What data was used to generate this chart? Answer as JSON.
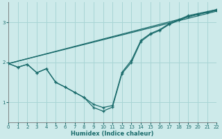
{
  "xlabel": "Humidex (Indice chaleur)",
  "bg_color": "#cdeaea",
  "grid_color": "#a8d5d5",
  "line_color": "#1a6b6b",
  "xlim": [
    0,
    22
  ],
  "ylim": [
    0.5,
    3.5
  ],
  "yticks": [
    1,
    2,
    3
  ],
  "xticks": [
    0,
    1,
    2,
    3,
    4,
    5,
    6,
    7,
    8,
    9,
    10,
    11,
    12,
    13,
    14,
    15,
    16,
    17,
    18,
    19,
    20,
    21,
    22
  ],
  "curve1_x": [
    0,
    1,
    2,
    3,
    4,
    5,
    6,
    7,
    8,
    9,
    10,
    11,
    12,
    13,
    14,
    15,
    16,
    17,
    18,
    19,
    20,
    21,
    22
  ],
  "curve1_y": [
    1.97,
    1.88,
    1.95,
    1.74,
    1.84,
    1.5,
    1.38,
    1.25,
    1.12,
    0.95,
    0.87,
    0.92,
    1.75,
    2.05,
    2.55,
    2.72,
    2.82,
    2.97,
    3.07,
    3.17,
    3.22,
    3.27,
    3.32
  ],
  "curve2_x": [
    0,
    1,
    2,
    3,
    4,
    5,
    6,
    7,
    8,
    9,
    10,
    11,
    12,
    13,
    14,
    15,
    16,
    17,
    18,
    19,
    20,
    21,
    22
  ],
  "curve2_y": [
    1.97,
    1.88,
    1.95,
    1.74,
    1.84,
    1.5,
    1.38,
    1.25,
    1.12,
    0.87,
    0.78,
    0.88,
    1.72,
    2.0,
    2.52,
    2.7,
    2.8,
    2.95,
    3.05,
    3.15,
    3.2,
    3.25,
    3.3
  ],
  "line1_x": [
    0,
    22
  ],
  "line1_y": [
    1.97,
    3.28
  ],
  "line2_x": [
    0,
    22
  ],
  "line2_y": [
    1.97,
    3.32
  ]
}
